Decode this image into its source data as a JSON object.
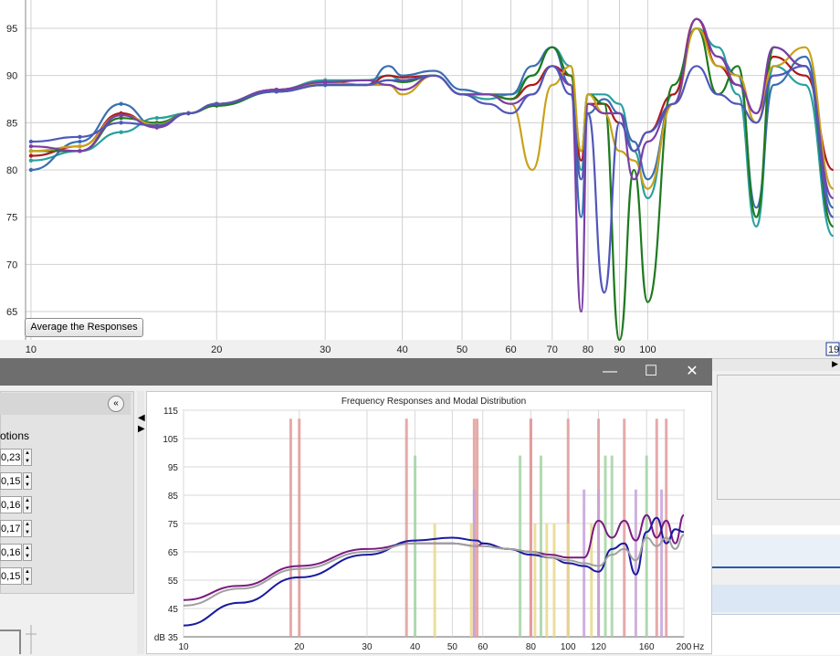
{
  "top_chart": {
    "button_label": "Average the Responses",
    "y_ticks": [
      "95",
      "90",
      "85",
      "80",
      "75",
      "70",
      "65"
    ],
    "x_ticks": [
      "10",
      "20",
      "30",
      "40",
      "50",
      "60",
      "70",
      "80",
      "90",
      "100"
    ],
    "cursor_readout": "19"
  },
  "window": {
    "controls": {
      "minimize": "—",
      "maximize": "☐",
      "close": "✕"
    }
  },
  "side_panel": {
    "options_label": "otions",
    "collapse_icon": "«",
    "values": [
      "0,23",
      "0,15",
      "0,16",
      "0,17",
      "0,16",
      "0,15"
    ]
  },
  "modal_chart": {
    "title": "Frequency Responses and Modal Distribution",
    "y_ticks": [
      "115",
      "105",
      "95",
      "85",
      "75",
      "65",
      "55",
      "45"
    ],
    "y_unit": "dB 35",
    "x_ticks": [
      "10",
      "20",
      "30",
      "40",
      "50",
      "60",
      "80",
      "100",
      "120",
      "160",
      "200"
    ],
    "x_unit": "Hz"
  },
  "chart_data": [
    {
      "type": "line",
      "title": "",
      "xlabel": "",
      "ylabel": "",
      "x_scale": "log",
      "xlim": [
        9.8,
        205
      ],
      "ylim": [
        62,
        98
      ],
      "grid": true,
      "x": [
        10,
        12,
        14,
        16,
        18,
        20,
        25,
        30,
        35,
        38,
        40,
        45,
        50,
        55,
        60,
        65,
        70,
        75,
        78,
        80,
        85,
        90,
        95,
        100,
        110,
        120,
        130,
        140,
        150,
        160,
        180,
        200
      ],
      "series": [
        {
          "color": "#2aa0a0",
          "values": [
            81,
            82,
            84,
            85.5,
            86,
            87,
            88.5,
            89.5,
            89.5,
            90,
            89.5,
            90,
            88,
            87.5,
            88,
            90,
            93,
            91,
            80,
            88,
            88,
            87,
            82,
            77,
            88,
            95,
            93,
            88,
            74,
            91,
            89,
            73
          ]
        },
        {
          "color": "#3a6fb0",
          "values": [
            80,
            83,
            87,
            84.5,
            86,
            87,
            88.5,
            89,
            89,
            91,
            90,
            90.5,
            88.5,
            88,
            88,
            91,
            93,
            89,
            75,
            86,
            87.5,
            86,
            83,
            79,
            87,
            96,
            92,
            90,
            76,
            89,
            92,
            76
          ]
        },
        {
          "color": "#b01818",
          "values": [
            81.5,
            82.5,
            86,
            84.5,
            86,
            87,
            88.5,
            89.3,
            89,
            90,
            89.8,
            90,
            88,
            88,
            87.5,
            89,
            91,
            90,
            81,
            87,
            87,
            85,
            82,
            84,
            88,
            96,
            91,
            89,
            86,
            92,
            90,
            80
          ]
        },
        {
          "color": "#1f7a1f",
          "values": [
            82,
            82,
            85.5,
            85,
            86,
            86.8,
            88.3,
            89,
            89,
            89.5,
            89.3,
            90,
            88,
            88,
            87.5,
            90,
            93,
            90,
            82,
            88,
            87,
            62,
            80,
            66,
            89,
            95,
            88,
            91,
            75,
            93,
            91,
            74
          ]
        },
        {
          "color": "#c9a21a",
          "values": [
            82,
            82.5,
            85.8,
            84.8,
            86,
            87,
            88.5,
            89.2,
            89,
            89,
            88,
            90,
            88,
            88,
            87,
            80,
            89,
            91,
            82,
            88,
            86,
            82,
            81,
            78,
            87,
            95,
            91,
            90,
            85,
            91,
            93,
            78
          ]
        },
        {
          "color": "#7b3fa8",
          "values": [
            82.5,
            82,
            85.8,
            84.5,
            86,
            87,
            88.5,
            89.3,
            89.5,
            89,
            88.5,
            90,
            88,
            88,
            87,
            88,
            91,
            89,
            65,
            87,
            86,
            86,
            79,
            83,
            87,
            96,
            92,
            89,
            86,
            93,
            91,
            77
          ]
        },
        {
          "color": "#5057b8",
          "values": [
            83,
            83.5,
            85,
            84.7,
            86,
            87,
            88.3,
            89,
            89,
            89.5,
            89.5,
            90,
            88,
            87,
            86,
            88,
            91,
            88,
            79,
            86,
            67,
            85,
            82,
            84,
            87,
            91,
            88,
            87,
            85,
            90,
            91,
            75
          ]
        }
      ]
    },
    {
      "type": "line",
      "title": "Frequency Responses and Modal Distribution",
      "xlabel": "Hz",
      "ylabel": "dB",
      "x_scale": "log",
      "xlim": [
        10,
        200
      ],
      "ylim": [
        35,
        115
      ],
      "grid": true,
      "x": [
        10,
        14,
        20,
        30,
        40,
        50,
        58,
        60,
        70,
        80,
        90,
        100,
        110,
        120,
        130,
        140,
        150,
        160,
        170,
        180,
        190,
        200
      ],
      "series": [
        {
          "color": "#7a1a80",
          "values": [
            48,
            53,
            60,
            66,
            68,
            68,
            67,
            68,
            66,
            65,
            64,
            63,
            63,
            76,
            70,
            76,
            69,
            78,
            70,
            76,
            68,
            78
          ]
        },
        {
          "color": "#1a1aa0",
          "values": [
            39,
            47,
            56,
            64,
            69,
            70,
            69,
            68,
            66,
            64,
            63,
            61,
            60,
            58,
            66,
            68,
            57,
            72,
            77,
            68,
            73,
            72
          ]
        },
        {
          "color": "#a0a0a0",
          "values": [
            46,
            52,
            59,
            65,
            68,
            68,
            67,
            67,
            66,
            65,
            63,
            62,
            61,
            60,
            64,
            66,
            62,
            70,
            67,
            70,
            66,
            71
          ]
        }
      ],
      "modal_lines": [
        {
          "color": "#e39a9a",
          "freq": [
            19,
            20,
            38,
            57,
            58,
            80,
            80,
            100,
            120,
            140,
            170,
            180
          ]
        },
        {
          "color": "#a3d4a3",
          "freq": [
            40,
            75,
            85,
            125,
            130,
            160
          ]
        },
        {
          "color": "#e7d98c",
          "freq": [
            45,
            56,
            82,
            88,
            92,
            100,
            115
          ]
        },
        {
          "color": "#c7a3d9",
          "freq": [
            57,
            110,
            120,
            150,
            175
          ]
        }
      ]
    }
  ]
}
